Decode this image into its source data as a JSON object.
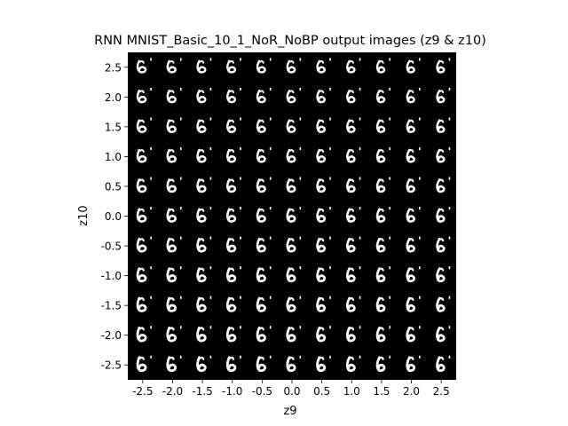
{
  "chart_data": {
    "type": "image-grid",
    "title": "RNN MNIST_Basic_10_1_NoR_NoBP output images (z9 & z10)",
    "xlabel": "z9",
    "ylabel": "z10",
    "x_ticks": [
      -2.5,
      -2.0,
      -1.5,
      -1.0,
      -0.5,
      0.0,
      0.5,
      1.0,
      1.5,
      2.0,
      2.5
    ],
    "y_ticks": [
      2.5,
      2.0,
      1.5,
      1.0,
      0.5,
      0.0,
      -0.5,
      -1.0,
      -1.5,
      -2.0,
      -2.5
    ],
    "x_tick_labels": [
      "-2.5",
      "-2.0",
      "-1.5",
      "-1.0",
      "-0.5",
      "0.0",
      "0.5",
      "1.0",
      "1.5",
      "2.0",
      "2.5"
    ],
    "y_tick_labels": [
      "2.5",
      "2.0",
      "1.5",
      "1.0",
      "0.5",
      "0.0",
      "-0.5",
      "-1.0",
      "-1.5",
      "-2.0",
      "-2.5"
    ],
    "xlim": [
      -2.75,
      2.75
    ],
    "ylim": [
      -2.75,
      2.75
    ],
    "grid": false,
    "background_color": "#000000",
    "digit_color": "#ffffff"
  }
}
